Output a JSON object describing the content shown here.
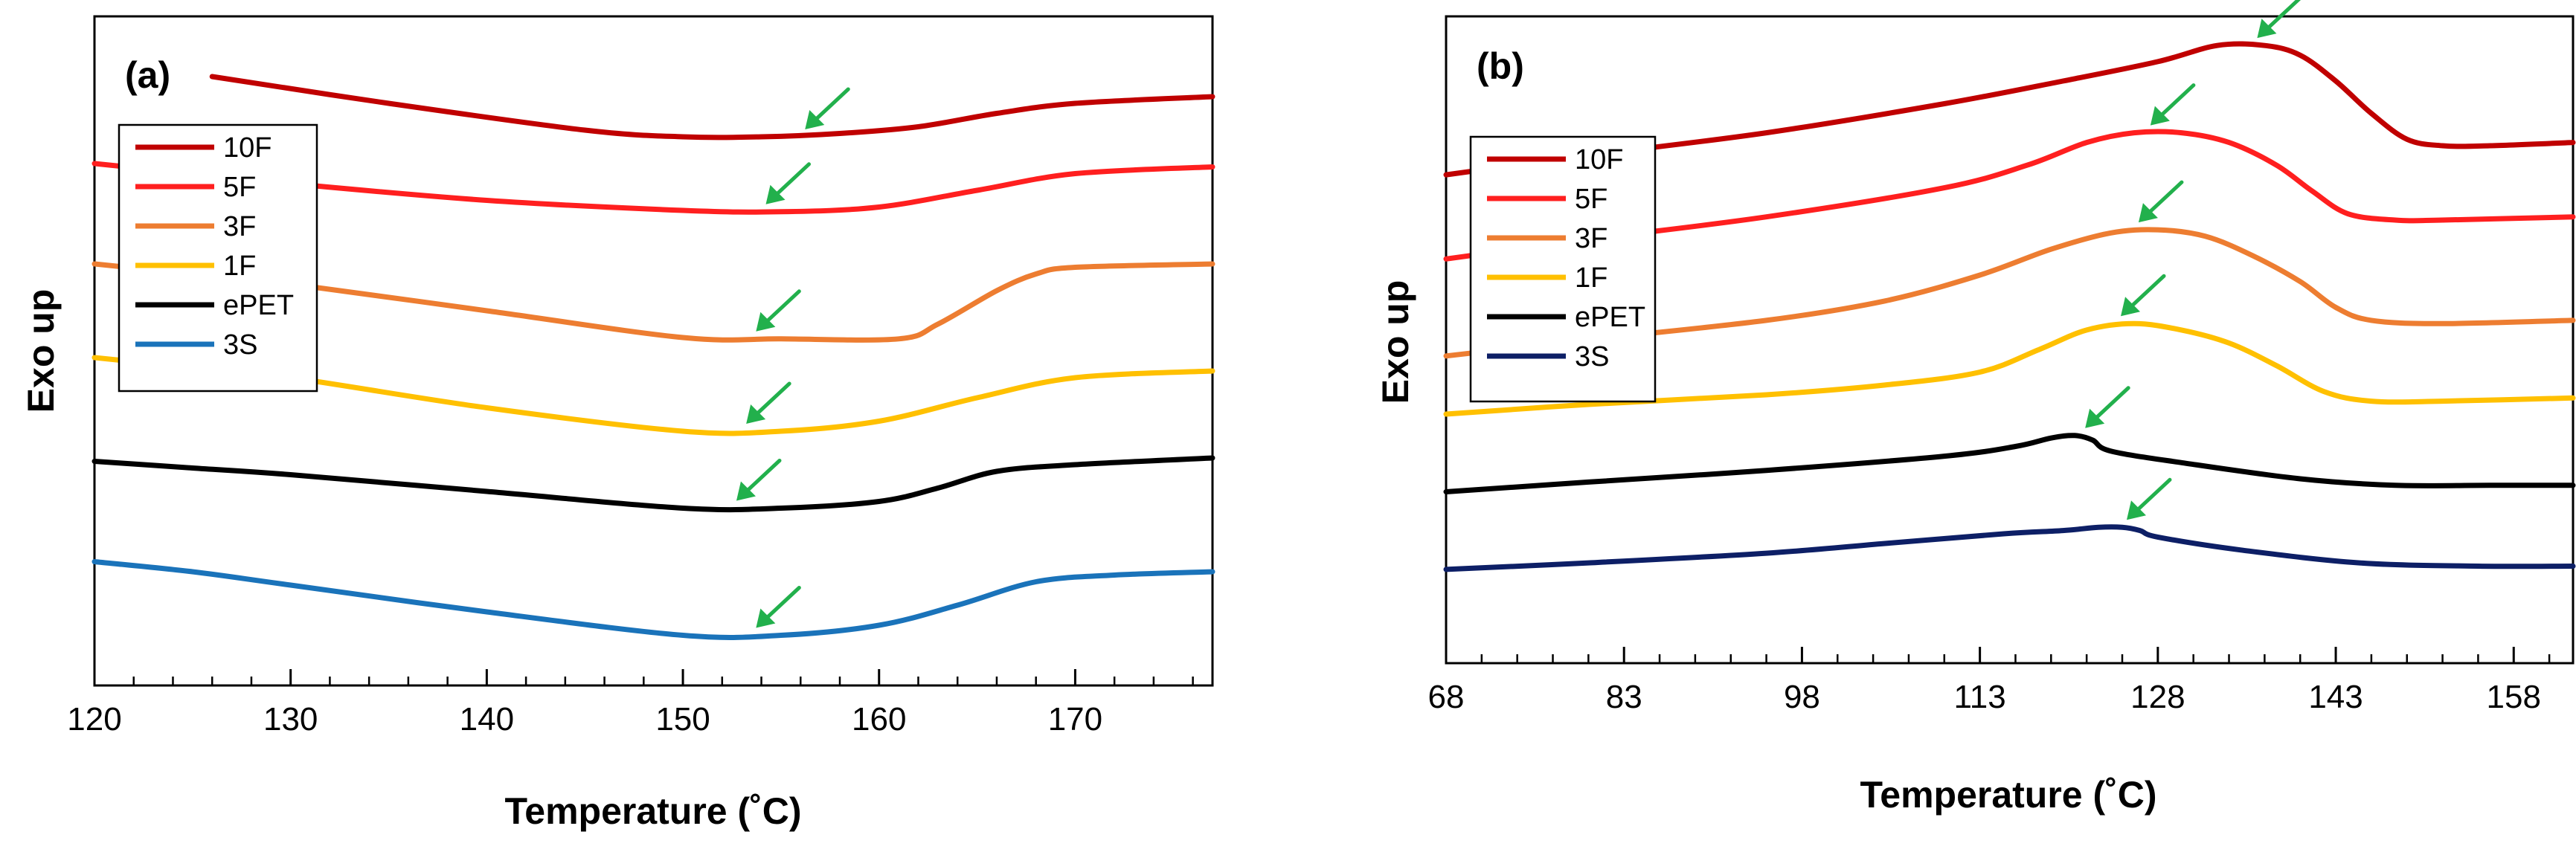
{
  "chart_data": [
    {
      "type": "line",
      "panel_label": "(a)",
      "xlabel": "Temperature (˚C)",
      "ylabel": "Exo up",
      "xlim": [
        120,
        177
      ],
      "xticks": [
        120,
        130,
        140,
        150,
        160,
        170
      ],
      "minor_step": 2,
      "ylim": [
        0,
        100
      ],
      "yticks_visible": false,
      "legend_position": "upper-left",
      "marker_color": "#22B04C",
      "series": [
        {
          "name": "10F",
          "color": "#C00000",
          "x": [
            126,
            135,
            145,
            150,
            154,
            158,
            162,
            166,
            170,
            177
          ],
          "y": [
            91,
            87,
            83,
            82,
            82,
            82.5,
            83.5,
            85.5,
            87,
            88
          ],
          "marker": {
            "x": 156,
            "y": 82
          }
        },
        {
          "name": "5F",
          "color": "#FF1F1F",
          "x": [
            120,
            125,
            130,
            140,
            150,
            155,
            160,
            165,
            170,
            177
          ],
          "y": [
            78,
            76.5,
            75,
            72.5,
            71,
            70.8,
            71.5,
            74,
            76.5,
            77.5
          ],
          "marker": {
            "x": 154,
            "y": 70.8
          }
        },
        {
          "name": "3F",
          "color": "#ED7D31",
          "x": [
            120,
            125,
            130,
            140,
            150,
            155,
            161,
            163,
            166,
            168,
            170,
            177
          ],
          "y": [
            63,
            61.5,
            60,
            56,
            52,
            51.8,
            51.8,
            54,
            59,
            61.5,
            62.5,
            63
          ]
        },
        {
          "name": "1F",
          "color": "#FFC000",
          "x": [
            120,
            125,
            130,
            140,
            150,
            155,
            160,
            165,
            170,
            177
          ],
          "y": [
            49,
            47.5,
            46,
            41.5,
            38,
            38,
            39.5,
            43,
            46,
            47
          ]
        },
        {
          "name": "ePET",
          "color": "#000000",
          "x": [
            120,
            125,
            130,
            140,
            150,
            155,
            160,
            163,
            166,
            170,
            177
          ],
          "y": [
            33.5,
            32.5,
            31.5,
            29,
            26.5,
            26.5,
            27.5,
            29.5,
            32,
            33,
            34
          ]
        },
        {
          "name": "3S",
          "color": "#1A73BA",
          "x": [
            120,
            125,
            130,
            140,
            150,
            155,
            160,
            164,
            168,
            172,
            177
          ],
          "y": [
            18.5,
            17,
            15,
            11,
            7.5,
            7.5,
            9,
            12,
            15.5,
            16.5,
            17
          ]
        }
      ],
      "marker_points": [
        {
          "x": 156,
          "y": 82
        },
        {
          "x": 154,
          "y": 70.8
        },
        {
          "x": 153.5,
          "y": 51.8
        },
        {
          "x": 153,
          "y": 38
        },
        {
          "x": 152.5,
          "y": 26.5
        },
        {
          "x": 153.5,
          "y": 7.5
        }
      ]
    },
    {
      "type": "line",
      "panel_label": "(b)",
      "xlabel": "Temperature (˚C)",
      "ylabel": "Exo up",
      "xlim": [
        68,
        163
      ],
      "xticks": [
        68,
        83,
        98,
        113,
        128,
        143,
        158
      ],
      "minor_step": 3,
      "ylim": [
        0,
        100
      ],
      "yticks_visible": false,
      "legend_position": "middle-left",
      "marker_color": "#22B04C",
      "series": [
        {
          "name": "10F",
          "color": "#C00000",
          "x": [
            68,
            80,
            95,
            110,
            120,
            128,
            133,
            137,
            140,
            143,
            146,
            149,
            152,
            156,
            163
          ],
          "y": [
            75.5,
            78.5,
            82,
            86.5,
            90,
            93,
            95.5,
            95.5,
            94,
            90,
            85,
            81,
            80,
            80,
            80.5
          ]
        },
        {
          "name": "5F",
          "color": "#FF1F1F",
          "x": [
            68,
            80,
            95,
            110,
            117,
            122,
            126,
            130,
            134,
            138,
            141,
            144,
            148,
            152,
            163
          ],
          "y": [
            62.5,
            65.5,
            69,
            73.5,
            77,
            80.5,
            82,
            82,
            80.5,
            77,
            73,
            69.5,
            68.5,
            68.5,
            69
          ]
        },
        {
          "name": "3F",
          "color": "#ED7D31",
          "x": [
            68,
            80,
            95,
            105,
            113,
            119,
            124,
            128,
            132,
            136,
            140,
            143,
            146,
            152,
            163
          ],
          "y": [
            47.5,
            50,
            53,
            56,
            60,
            64,
            66.5,
            67,
            66,
            63,
            59,
            55,
            53,
            52.5,
            53
          ]
        },
        {
          "name": "1F",
          "color": "#FFC000",
          "x": [
            68,
            80,
            95,
            105,
            113,
            118,
            122,
            126,
            130,
            134,
            138,
            142,
            146,
            152,
            163
          ],
          "y": [
            38.5,
            40,
            41.5,
            43,
            45,
            48.5,
            51.5,
            52.5,
            51.5,
            49.5,
            46,
            42,
            40.5,
            40.5,
            41
          ]
        },
        {
          "name": "ePET",
          "color": "#000000",
          "x": [
            68,
            80,
            95,
            110,
            116,
            119,
            121,
            122.5,
            124,
            130,
            140,
            148,
            156,
            163
          ],
          "y": [
            26.5,
            28,
            29.8,
            32,
            33.5,
            34.8,
            35.2,
            34.5,
            32.8,
            31,
            28.5,
            27.5,
            27.5,
            27.5
          ]
        },
        {
          "name": "3S",
          "color": "#0D1F66",
          "x": [
            68,
            80,
            95,
            105,
            115,
            120,
            123,
            125,
            126.5,
            128,
            135,
            145,
            155,
            163
          ],
          "y": [
            14.5,
            15.5,
            17,
            18.5,
            20,
            20.5,
            21,
            21,
            20.5,
            19.5,
            17.5,
            15.5,
            15,
            15
          ]
        }
      ],
      "marker_points": [
        {
          "x": 136,
          "y": 95.5
        },
        {
          "x": 127,
          "y": 82
        },
        {
          "x": 126,
          "y": 67
        },
        {
          "x": 124.5,
          "y": 52.5
        },
        {
          "x": 121.5,
          "y": 35.2
        },
        {
          "x": 125,
          "y": 21
        }
      ]
    }
  ]
}
